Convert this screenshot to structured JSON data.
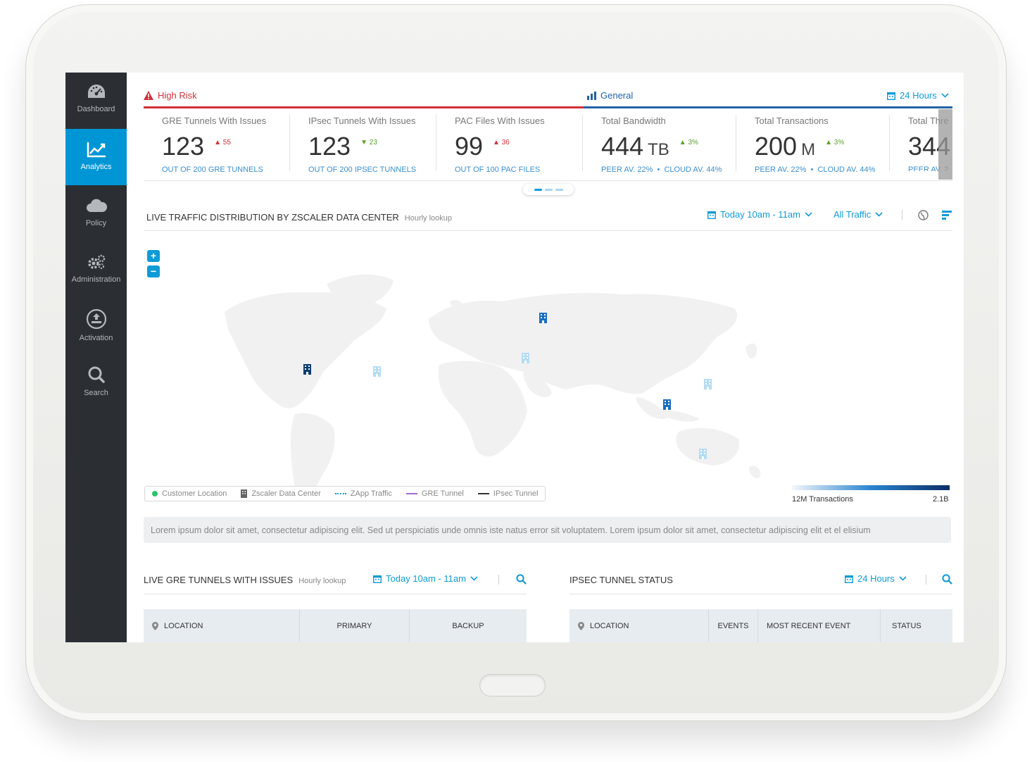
{
  "sidebar": {
    "items": [
      {
        "label": "Dashboard",
        "icon": "gauge-icon",
        "active": false
      },
      {
        "label": "Analytics",
        "icon": "chart-line-icon",
        "active": true
      },
      {
        "label": "Policy",
        "icon": "cloud-icon",
        "active": false
      },
      {
        "label": "Administration",
        "icon": "gears-icon",
        "active": false
      },
      {
        "label": "Activation",
        "icon": "upload-icon",
        "active": false
      },
      {
        "label": "Search",
        "icon": "search-icon",
        "active": false
      }
    ]
  },
  "header": {
    "high_risk": "High Risk",
    "general": "General",
    "time_range": "24 Hours"
  },
  "kpis": [
    {
      "title": "GRE Tunnels With Issues",
      "value": "123",
      "unit": "",
      "delta": "55",
      "delta_dir": "up",
      "delta_color": "#d0313a",
      "sub": "OUT OF 200 GRE TUNNELS"
    },
    {
      "title": "IPsec Tunnels With Issues",
      "value": "123",
      "unit": "",
      "delta": "23",
      "delta_dir": "down",
      "delta_color": "#5aa02c",
      "sub": "OUT OF 200 IPSEC TUNNELS"
    },
    {
      "title": "PAC Files With Issues",
      "value": "99",
      "unit": "",
      "delta": "36",
      "delta_dir": "up",
      "delta_color": "#d0313a",
      "sub": "OUT OF 100 PAC FILES"
    },
    {
      "title": "Total Bandwidth",
      "value": "444",
      "unit": "TB",
      "delta": "3%",
      "delta_dir": "up",
      "delta_color": "#5aa02c",
      "sub_peer": "PEER AV. 22%",
      "sub_cloud": "CLOUD AV. 44%"
    },
    {
      "title": "Total Transactions",
      "value": "200",
      "unit": "M",
      "delta": "3%",
      "delta_dir": "up",
      "delta_color": "#5aa02c",
      "sub_peer": "PEER AV. 22%",
      "sub_cloud": "CLOUD AV. 44%"
    },
    {
      "title": "Total Thre",
      "value": "344",
      "unit": "",
      "sub_peer": "PEER AV. 2"
    }
  ],
  "traffic": {
    "title": "LIVE TRAFFIC DISTRIBUTION BY ZSCALER DATA CENTER",
    "subtitle": "Hourly lookup",
    "time_filter": "Today 10am - 11am",
    "traffic_filter": "All Traffic",
    "legend": {
      "customer_location": "Customer Location",
      "data_center": "Zscaler Data Center",
      "zapp": "ZApp Traffic",
      "gre": "GRE Tunnel",
      "ipsec": "IPsec Tunnel"
    },
    "scale_low": "12M Transactions",
    "scale_high": "2.1B",
    "note": "Lorem ipsum dolor sit amet, consectetur adipiscing elit. Sed ut perspiciatis unde omnis iste natus error sit voluptatem. Lorem ipsum dolor sit amet, consectetur adipiscing elit et el elisium"
  },
  "gre_panel": {
    "title": "LIVE GRE TUNNELS WITH ISSUES",
    "subtitle": "Hourly lookup",
    "time_filter": "Today 10am - 11am",
    "columns": [
      "LOCATION",
      "PRIMARY",
      "BACKUP"
    ]
  },
  "ipsec_panel": {
    "title": "IPSEC TUNNEL STATUS",
    "time_filter": "24 Hours",
    "columns": [
      "LOCATION",
      "EVENTS",
      "MOST RECENT EVENT",
      "STATUS"
    ]
  },
  "colors": {
    "accent": "#0f9bd7",
    "risk": "#d0313a",
    "general": "#2262a6",
    "sidebar": "#2b2f33"
  }
}
